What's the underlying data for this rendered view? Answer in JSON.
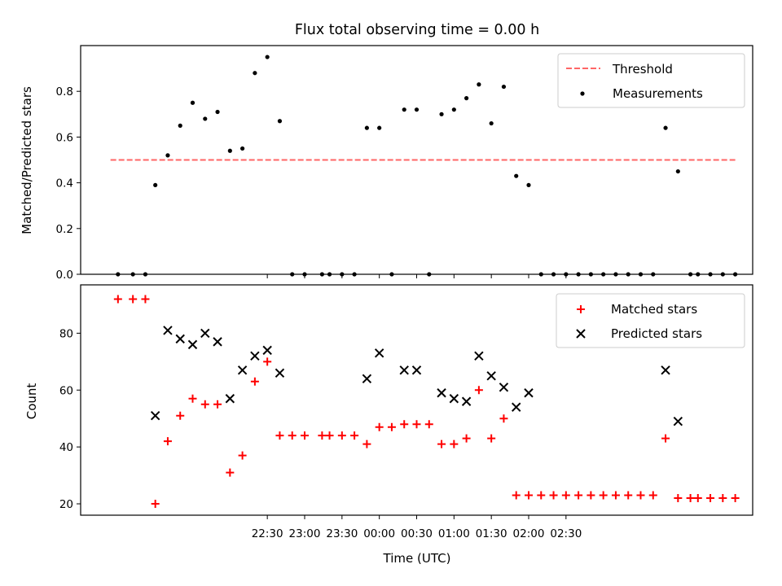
{
  "chart_data": [
    {
      "type": "scatter",
      "title": "Flux total observing time = 0.00 h",
      "xlabel": "",
      "ylabel": "Matched/Predicted stars",
      "ylim": [
        0,
        1.0
      ],
      "yticks": [
        "0.0",
        "0.2",
        "0.4",
        "0.6",
        "0.8"
      ],
      "xlim_minutes": [
        -240,
        300
      ],
      "legend": {
        "placement": "top-right",
        "threshold_label": "Threshold",
        "measurements_label": "Measurements"
      },
      "threshold": {
        "value": 0.5,
        "x_start_min": -216,
        "x_end_min": 286,
        "color": "#ff6666"
      },
      "series": [
        {
          "name": "Measurements",
          "color": "#000000",
          "marker": "dot",
          "points": [
            [
              -210,
              0
            ],
            [
              -198,
              0
            ],
            [
              -188,
              0
            ],
            [
              -180,
              0.39
            ],
            [
              -170,
              0.52
            ],
            [
              -160,
              0.65
            ],
            [
              -150,
              0.75
            ],
            [
              -140,
              0.68
            ],
            [
              -130,
              0.71
            ],
            [
              -120,
              0.54
            ],
            [
              -110,
              0.55
            ],
            [
              -100,
              0.88
            ],
            [
              -90,
              0.95
            ],
            [
              -80,
              0.67
            ],
            [
              -70,
              0
            ],
            [
              -60,
              0
            ],
            [
              -46,
              0
            ],
            [
              -40,
              0
            ],
            [
              -30,
              0
            ],
            [
              -20,
              0
            ],
            [
              -10,
              0.64
            ],
            [
              0,
              0.64
            ],
            [
              10,
              0
            ],
            [
              20,
              0.72
            ],
            [
              30,
              0.72
            ],
            [
              40,
              0
            ],
            [
              50,
              0.7
            ],
            [
              60,
              0.72
            ],
            [
              70,
              0.77
            ],
            [
              80,
              0.83
            ],
            [
              90,
              0.66
            ],
            [
              100,
              0.82
            ],
            [
              110,
              0.43
            ],
            [
              120,
              0.39
            ],
            [
              130,
              0
            ],
            [
              140,
              0
            ],
            [
              150,
              0
            ],
            [
              160,
              0
            ],
            [
              170,
              0
            ],
            [
              180,
              0
            ],
            [
              190,
              0
            ],
            [
              200,
              0
            ],
            [
              210,
              0
            ],
            [
              220,
              0
            ],
            [
              230,
              0.64
            ],
            [
              240,
              0.45
            ],
            [
              250,
              0
            ],
            [
              256,
              0
            ],
            [
              266,
              0
            ],
            [
              276,
              0
            ],
            [
              286,
              0
            ]
          ]
        }
      ]
    },
    {
      "type": "scatter",
      "title": "",
      "xlabel": "Time (UTC)",
      "ylabel": "Count",
      "ylim": [
        16,
        97
      ],
      "yticks": [
        20,
        40,
        60,
        80
      ],
      "xtick_labels": [
        "22:30",
        "23:00",
        "23:30",
        "00:00",
        "00:30",
        "01:00",
        "01:30",
        "02:00",
        "02:30"
      ],
      "xtick_minutes": [
        -90,
        -60,
        -30,
        0,
        30,
        60,
        90,
        120,
        150
      ],
      "xlim_minutes": [
        -240,
        300
      ],
      "legend": {
        "placement": "top-right",
        "matched_label": "Matched stars",
        "predicted_label": "Predicted stars"
      },
      "series": [
        {
          "name": "Matched stars",
          "color": "#ff0000",
          "marker": "plus",
          "points": [
            [
              -210,
              92
            ],
            [
              -198,
              92
            ],
            [
              -188,
              92
            ],
            [
              -180,
              20
            ],
            [
              -170,
              42
            ],
            [
              -160,
              51
            ],
            [
              -150,
              57
            ],
            [
              -140,
              55
            ],
            [
              -130,
              55
            ],
            [
              -120,
              31
            ],
            [
              -110,
              37
            ],
            [
              -100,
              63
            ],
            [
              -90,
              70
            ],
            [
              -80,
              44
            ],
            [
              -70,
              44
            ],
            [
              -60,
              44
            ],
            [
              -46,
              44
            ],
            [
              -40,
              44
            ],
            [
              -30,
              44
            ],
            [
              -20,
              44
            ],
            [
              -10,
              41
            ],
            [
              0,
              47
            ],
            [
              10,
              47
            ],
            [
              20,
              48
            ],
            [
              30,
              48
            ],
            [
              40,
              48
            ],
            [
              50,
              41
            ],
            [
              60,
              41
            ],
            [
              70,
              43
            ],
            [
              80,
              60
            ],
            [
              90,
              43
            ],
            [
              100,
              50
            ],
            [
              110,
              23
            ],
            [
              120,
              23
            ],
            [
              130,
              23
            ],
            [
              140,
              23
            ],
            [
              150,
              23
            ],
            [
              160,
              23
            ],
            [
              170,
              23
            ],
            [
              180,
              23
            ],
            [
              190,
              23
            ],
            [
              200,
              23
            ],
            [
              210,
              23
            ],
            [
              220,
              23
            ],
            [
              230,
              43
            ],
            [
              240,
              22
            ],
            [
              250,
              22
            ],
            [
              256,
              22
            ],
            [
              266,
              22
            ],
            [
              276,
              22
            ],
            [
              286,
              22
            ]
          ]
        },
        {
          "name": "Predicted stars",
          "color": "#000000",
          "marker": "x",
          "points": [
            [
              -180,
              51
            ],
            [
              -170,
              81
            ],
            [
              -160,
              78
            ],
            [
              -150,
              76
            ],
            [
              -140,
              80
            ],
            [
              -130,
              77
            ],
            [
              -120,
              57
            ],
            [
              -110,
              67
            ],
            [
              -100,
              72
            ],
            [
              -90,
              74
            ],
            [
              -80,
              66
            ],
            [
              -10,
              64
            ],
            [
              0,
              73
            ],
            [
              20,
              67
            ],
            [
              30,
              67
            ],
            [
              50,
              59
            ],
            [
              60,
              57
            ],
            [
              70,
              56
            ],
            [
              80,
              72
            ],
            [
              90,
              65
            ],
            [
              100,
              61
            ],
            [
              110,
              54
            ],
            [
              120,
              59
            ],
            [
              230,
              67
            ],
            [
              240,
              49
            ]
          ]
        }
      ]
    }
  ]
}
